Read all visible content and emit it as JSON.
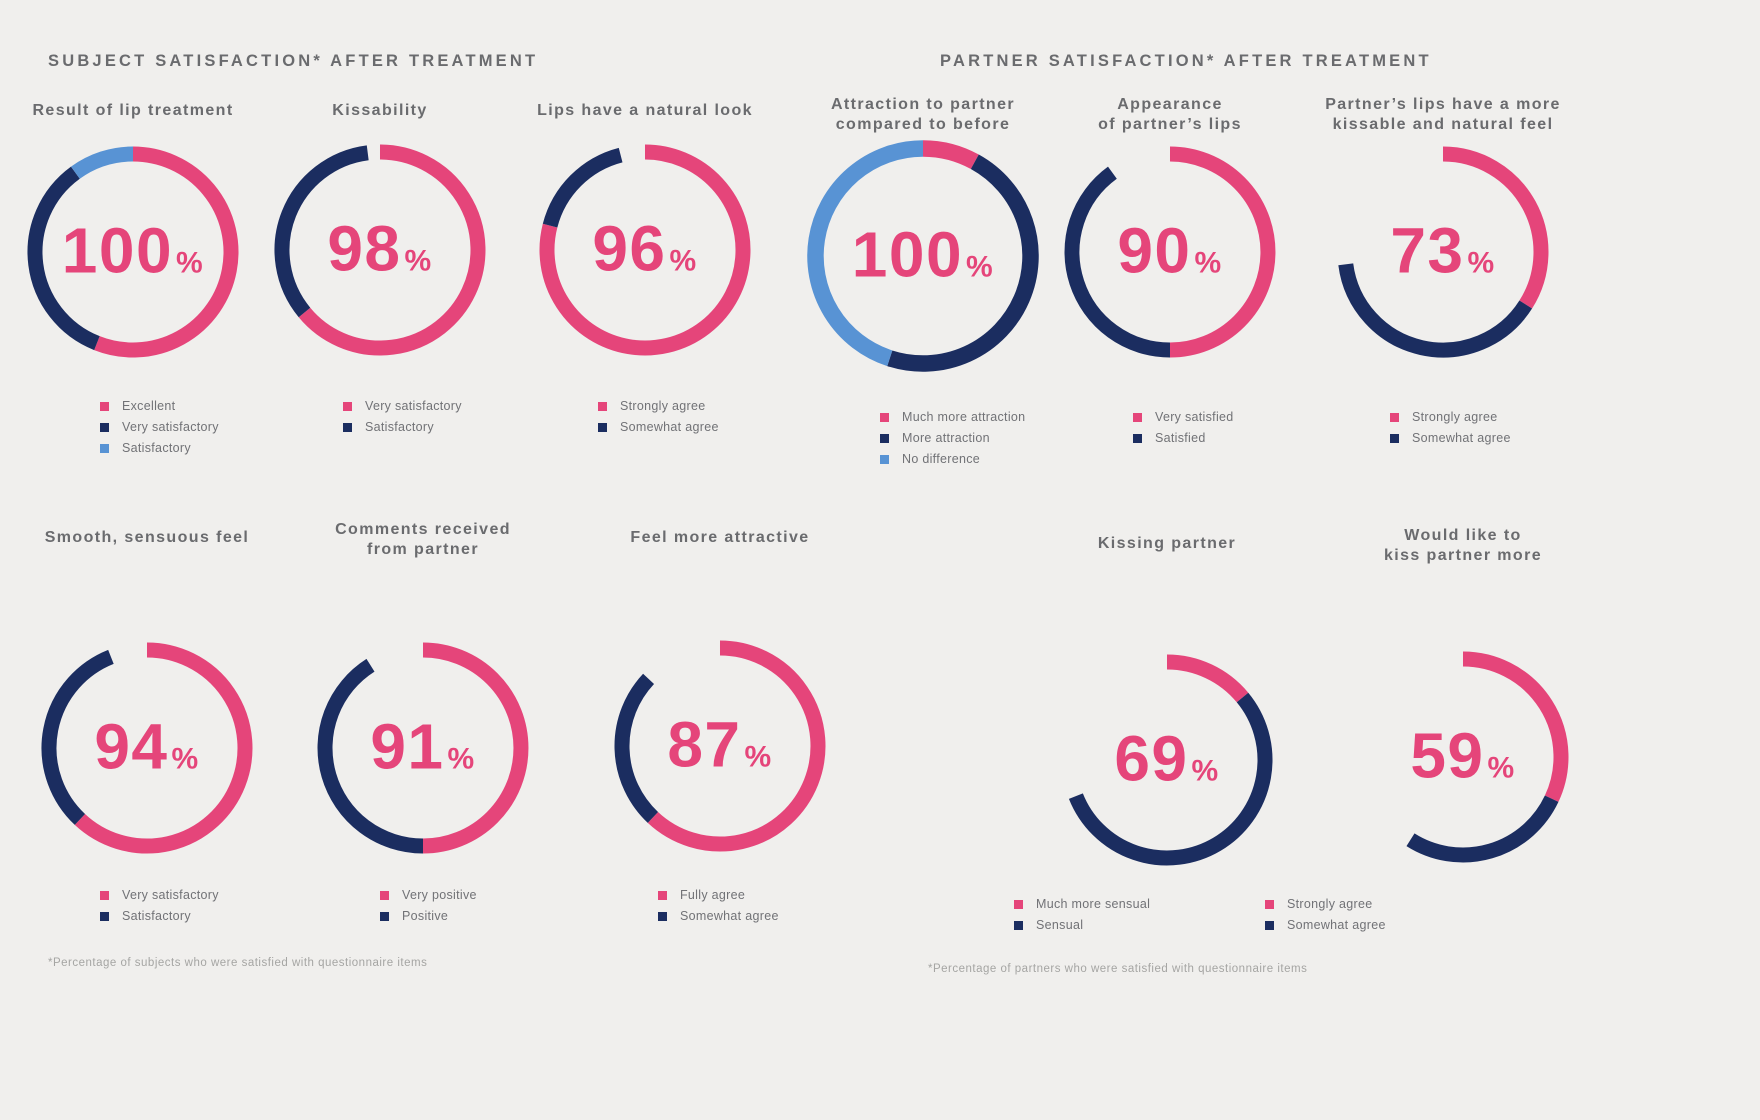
{
  "colors": {
    "pink": "#e5457a",
    "navy": "#1b2d60",
    "blue": "#5893d4",
    "background": "#f0efed",
    "heading_gray": "#6a6b6e",
    "legend_gray": "#717276",
    "footnote_gray": "#a5a5a3"
  },
  "sections": [
    {
      "id": "subject",
      "header": "SUBJECT SATISFACTION* AFTER TREATMENT",
      "footnote": "*Percentage of subjects who were satisfied with questionnaire items"
    },
    {
      "id": "partner",
      "header": "PARTNER SATISFACTION* AFTER TREATMENT",
      "footnote": "*Percentage of partners who were satisfied with questionnaire items"
    }
  ],
  "chart_data": {
    "type": "pie",
    "subtype": "donut-set",
    "unit": "%",
    "note": "Each donut shows total satisfaction percent in the center; ring segments start at 12 o'clock and sweep clockwise; unfilled gap equals 100 minus the total. arc_pct values are the visual segment sweeps read from the image.",
    "charts": [
      {
        "id": "result-of-lip-treatment",
        "section": "subject",
        "title_lines": [
          "Result of lip treatment"
        ],
        "value": 100,
        "segments": [
          {
            "label": "Excellent",
            "color": "pink",
            "arc_pct": 56
          },
          {
            "label": "Very satisfactory",
            "color": "navy",
            "arc_pct": 34
          },
          {
            "label": "Satisfactory",
            "color": "blue",
            "arc_pct": 10
          }
        ]
      },
      {
        "id": "kissability",
        "section": "subject",
        "title_lines": [
          "Kissability"
        ],
        "value": 98,
        "segments": [
          {
            "label": "Very satisfactory",
            "color": "pink",
            "arc_pct": 64
          },
          {
            "label": "Satisfactory",
            "color": "navy",
            "arc_pct": 34
          }
        ]
      },
      {
        "id": "lips-have-a-natural-look",
        "section": "subject",
        "title_lines": [
          "Lips have a natural look"
        ],
        "value": 96,
        "segments": [
          {
            "label": "Strongly agree",
            "color": "pink",
            "arc_pct": 79
          },
          {
            "label": "Somewhat agree",
            "color": "navy",
            "arc_pct": 17
          }
        ]
      },
      {
        "id": "attraction-to-partner",
        "section": "partner",
        "title_lines": [
          "Attraction to partner",
          "compared to before"
        ],
        "value": 100,
        "segments": [
          {
            "label": "Much more attraction",
            "color": "pink",
            "arc_pct": 8
          },
          {
            "label": "More attraction",
            "color": "navy",
            "arc_pct": 47
          },
          {
            "label": "No difference",
            "color": "blue",
            "arc_pct": 45
          }
        ]
      },
      {
        "id": "appearance-of-partners-lips",
        "section": "partner",
        "title_lines": [
          "Appearance",
          "of partner’s lips"
        ],
        "value": 90,
        "segments": [
          {
            "label": "Very satisfied",
            "color": "pink",
            "arc_pct": 50
          },
          {
            "label": "Satisfied",
            "color": "navy",
            "arc_pct": 40
          }
        ]
      },
      {
        "id": "partners-lips-more-kissable",
        "section": "partner",
        "title_lines": [
          "Partner’s lips have a more",
          "kissable and natural feel"
        ],
        "value": 73,
        "segments": [
          {
            "label": "Strongly agree",
            "color": "pink",
            "arc_pct": 34
          },
          {
            "label": "Somewhat agree",
            "color": "navy",
            "arc_pct": 39
          }
        ]
      },
      {
        "id": "smooth-sensuous-feel",
        "section": "subject",
        "title_lines": [
          "Smooth, sensuous feel"
        ],
        "value": 94,
        "segments": [
          {
            "label": "Very satisfactory",
            "color": "pink",
            "arc_pct": 62
          },
          {
            "label": "Satisfactory",
            "color": "navy",
            "arc_pct": 32
          }
        ]
      },
      {
        "id": "comments-received-from-partner",
        "section": "subject",
        "title_lines": [
          "Comments received",
          "from partner"
        ],
        "value": 91,
        "segments": [
          {
            "label": "Very positive",
            "color": "pink",
            "arc_pct": 50
          },
          {
            "label": "Positive",
            "color": "navy",
            "arc_pct": 41
          }
        ]
      },
      {
        "id": "feel-more-attractive",
        "section": "subject",
        "title_lines": [
          "Feel more attractive"
        ],
        "value": 87,
        "segments": [
          {
            "label": "Fully agree",
            "color": "pink",
            "arc_pct": 62
          },
          {
            "label": "Somewhat agree",
            "color": "navy",
            "arc_pct": 25
          }
        ]
      },
      {
        "id": "kissing-partner",
        "section": "partner",
        "title_lines": [
          "Kissing partner"
        ],
        "value": 69,
        "segments": [
          {
            "label": "Much more sensual",
            "color": "pink",
            "arc_pct": 14
          },
          {
            "label": "Sensual",
            "color": "navy",
            "arc_pct": 55
          }
        ]
      },
      {
        "id": "would-like-to-kiss-partner-more",
        "section": "partner",
        "title_lines": [
          "Would like to",
          "kiss partner more"
        ],
        "value": 59,
        "segments": [
          {
            "label": "Strongly agree",
            "color": "pink",
            "arc_pct": 32
          },
          {
            "label": "Somewhat agree",
            "color": "navy",
            "arc_pct": 27
          }
        ]
      }
    ]
  }
}
